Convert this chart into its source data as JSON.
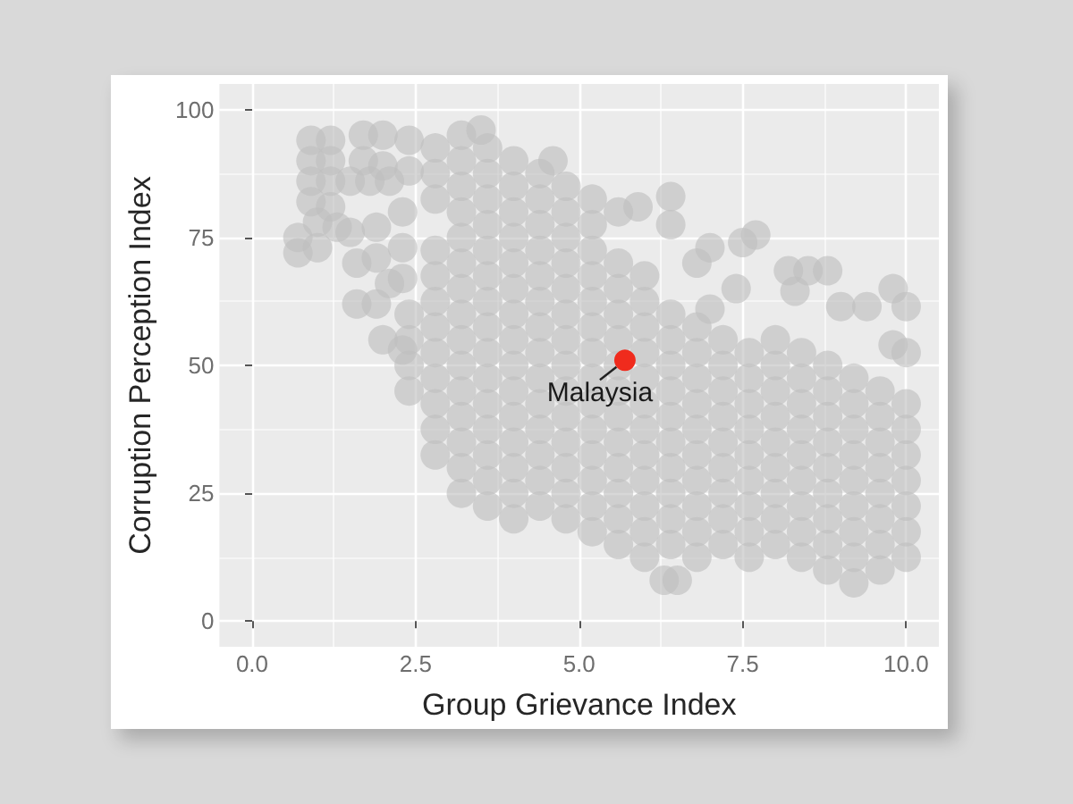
{
  "chart_data": {
    "type": "scatter",
    "xlabel": "Group Grievance Index",
    "ylabel": "Corruption Perception Index",
    "xlim": [
      -0.5,
      10.5
    ],
    "ylim": [
      -5,
      105
    ],
    "xticks": [
      {
        "value": 0,
        "label": "0.0"
      },
      2.5,
      {
        "value": 5,
        "label": "5.0"
      },
      7.5,
      {
        "value": 10,
        "label": "10.0"
      }
    ],
    "yticks": [
      0,
      25,
      50,
      75,
      100
    ],
    "grid": true,
    "marker": "circle",
    "series": [
      {
        "color": "#bebebe",
        "x": [
          0.7,
          0.7,
          0.9,
          0.9,
          0.9,
          0.9,
          1,
          1,
          1.2,
          1.2,
          1.2,
          1.2,
          1.3,
          1.5,
          1.5,
          1.6,
          1.7,
          1.7,
          1.8,
          1.9,
          2,
          2,
          2.1,
          1.9,
          1.6,
          1.9,
          2,
          2.1,
          2.3,
          2.3,
          2.3,
          2.3,
          2.4,
          2.4,
          2.4,
          2.4,
          2.4,
          2.4,
          2.8,
          2.8,
          2.8,
          2.8,
          2.8,
          2.8,
          2.8,
          2.8,
          2.8,
          2.8,
          2.8,
          2.8,
          3.2,
          3.2,
          3.2,
          3.2,
          3.2,
          3.2,
          3.2,
          3.2,
          3.2,
          3.2,
          3.2,
          3.2,
          3.2,
          3.2,
          3.2,
          3.6,
          3.6,
          3.6,
          3.6,
          3.6,
          3.6,
          3.6,
          3.6,
          3.6,
          3.6,
          3.6,
          3.6,
          3.6,
          3.6,
          3.6,
          4,
          4,
          4,
          4,
          4,
          4,
          4,
          4,
          4,
          4,
          4,
          4,
          4,
          4,
          4,
          4.4,
          4.4,
          4.4,
          4.4,
          4.4,
          4.4,
          4.4,
          4.4,
          4.4,
          4.4,
          4.4,
          4.4,
          4.4,
          4.4,
          4.8,
          4.8,
          4.8,
          4.8,
          4.8,
          4.8,
          4.8,
          4.8,
          4.8,
          4.8,
          4.8,
          4.8,
          4.8,
          4.8,
          5.2,
          5.2,
          5.2,
          5.2,
          5.2,
          5.2,
          5.2,
          5.2,
          5.2,
          5.2,
          5.2,
          5.2,
          5.2,
          5.6,
          5.6,
          5.6,
          5.6,
          5.6,
          5.6,
          5.6,
          5.6,
          5.6,
          5.6,
          5.6,
          5.6,
          6,
          6,
          6,
          6,
          6,
          6,
          6,
          6,
          6,
          6,
          6,
          6,
          6.4,
          6.4,
          6.4,
          6.4,
          6.4,
          6.4,
          6.4,
          6.4,
          6.4,
          6.4,
          6.8,
          6.8,
          6.8,
          6.8,
          6.8,
          6.8,
          6.8,
          6.8,
          6.8,
          6.8,
          7.2,
          7.2,
          7.2,
          7.2,
          7.2,
          7.2,
          7.2,
          7.2,
          7.2,
          7.6,
          7.6,
          7.6,
          7.6,
          7.6,
          7.6,
          7.6,
          7.6,
          7.6,
          8,
          8,
          8,
          8,
          8,
          8,
          8,
          8,
          8,
          8.4,
          8.4,
          8.4,
          8.4,
          8.4,
          8.4,
          8.4,
          8.4,
          8.4,
          8.8,
          8.8,
          8.8,
          8.8,
          8.8,
          8.8,
          8.8,
          8.8,
          8.8,
          9.2,
          9.2,
          9.2,
          9.2,
          9.2,
          9.2,
          9.2,
          9.2,
          9.2,
          9.6,
          9.6,
          9.6,
          9.6,
          9.6,
          9.6,
          9.6,
          9.6,
          10,
          10,
          10,
          10,
          10,
          10,
          10,
          5.9,
          6.4,
          6.4,
          6.8,
          7,
          7,
          7.4,
          7.5,
          7.7,
          8.2,
          8.3,
          8.5,
          8.8,
          9,
          9.4,
          9.8,
          10,
          9.8,
          10,
          6.3,
          6.5,
          5.6,
          5.2,
          4.6,
          3.5
        ],
        "values": [
          75,
          72,
          94,
          90,
          86,
          82,
          78,
          73,
          94,
          90,
          86,
          81,
          77,
          86,
          76,
          70,
          95,
          90,
          86,
          77,
          95,
          89,
          86,
          71,
          62,
          62,
          55,
          66,
          53,
          67,
          80,
          73,
          45,
          50,
          55,
          60,
          88,
          94,
          32.5,
          37.5,
          42.5,
          47.5,
          52.5,
          57.5,
          62.5,
          67.5,
          72.5,
          82.5,
          87.5,
          92.5,
          25,
          30,
          35,
          40,
          45,
          50,
          55,
          60,
          65,
          70,
          75,
          80,
          85,
          90,
          95,
          22.5,
          27.5,
          32.5,
          37.5,
          42.5,
          47.5,
          52.5,
          57.5,
          62.5,
          67.5,
          72.5,
          77.5,
          82.5,
          87.5,
          92.5,
          20,
          25,
          30,
          35,
          40,
          45,
          50,
          55,
          60,
          65,
          70,
          75,
          80,
          85,
          90,
          22.5,
          27.5,
          32.5,
          37.5,
          42.5,
          47.5,
          52.5,
          57.5,
          62.5,
          67.5,
          72.5,
          77.5,
          82.5,
          87.5,
          20,
          25,
          30,
          35,
          40,
          45,
          50,
          55,
          60,
          65,
          70,
          75,
          80,
          85,
          17.5,
          22.5,
          27.5,
          32.5,
          37.5,
          42.5,
          47.5,
          52.5,
          57.5,
          62.5,
          67.5,
          72.5,
          77.5,
          15,
          20,
          25,
          30,
          35,
          40,
          45,
          50,
          55,
          60,
          65,
          70,
          12.5,
          17.5,
          22.5,
          27.5,
          32.5,
          37.5,
          42.5,
          47.5,
          52.5,
          57.5,
          62.5,
          67.5,
          15,
          20,
          25,
          30,
          35,
          40,
          45,
          50,
          55,
          60,
          12.5,
          17.5,
          22.5,
          27.5,
          32.5,
          37.5,
          42.5,
          47.5,
          52.5,
          57.5,
          15,
          20,
          25,
          30,
          35,
          40,
          45,
          50,
          55,
          12.5,
          17.5,
          22.5,
          27.5,
          32.5,
          37.5,
          42.5,
          47.5,
          52.5,
          15,
          20,
          25,
          30,
          35,
          40,
          45,
          50,
          55,
          12.5,
          17.5,
          22.5,
          27.5,
          32.5,
          37.5,
          42.5,
          47.5,
          52.5,
          10,
          15,
          20,
          25,
          30,
          35,
          40,
          45,
          50,
          7.5,
          12.5,
          17.5,
          22.5,
          27.5,
          32.5,
          37.5,
          42.5,
          47.5,
          10,
          15,
          20,
          25,
          30,
          35,
          40,
          45,
          12.5,
          17.5,
          22.5,
          27.5,
          32.5,
          37.5,
          42.5,
          81,
          83,
          77.5,
          70,
          73,
          61,
          65,
          74,
          75.5,
          68.5,
          64.5,
          68.5,
          68.5,
          61.5,
          61.5,
          65,
          61.5,
          54,
          52.5,
          8,
          8,
          80,
          82.5,
          90,
          96
        ]
      },
      {
        "name": "Malaysia",
        "color": "#f02b1d",
        "x": [
          5.7
        ],
        "values": [
          51
        ]
      }
    ]
  }
}
